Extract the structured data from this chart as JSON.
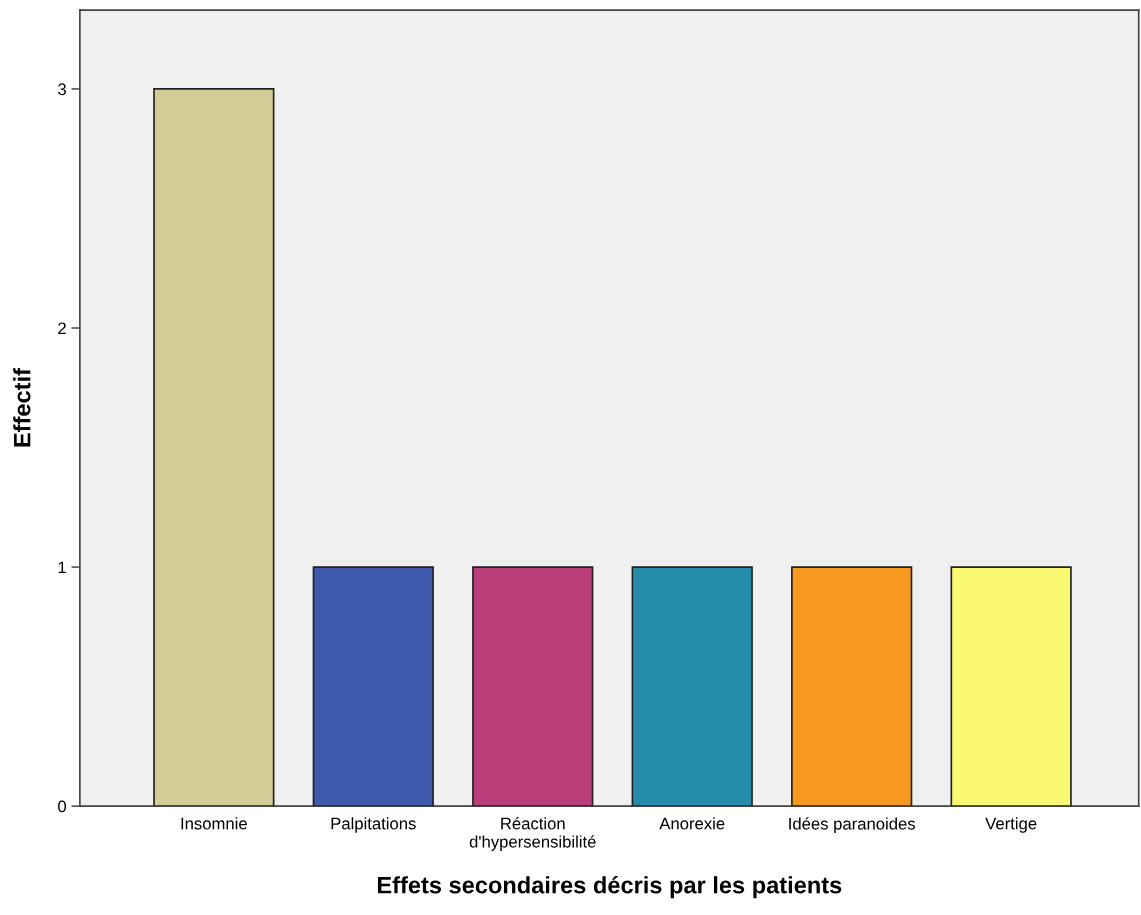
{
  "chart_data": {
    "type": "bar",
    "xlabel": "Effets secondaires décris par les patients",
    "ylabel": "Effectif",
    "categories": [
      "Insomnie",
      "Palpitations",
      "Réaction\nd'hypersensibilité",
      "Anorexie",
      "Idées paranoides",
      "Vertige"
    ],
    "values": [
      3,
      1,
      1,
      1,
      1,
      1
    ],
    "colors": [
      "#d3ce97",
      "#3e58ac",
      "#b93e7a",
      "#248ca9",
      "#f7981f",
      "#fbf873"
    ],
    "ylim": [
      0,
      3.33
    ],
    "yticks": [
      0,
      1,
      2,
      3
    ],
    "grid": false,
    "legend": false
  }
}
